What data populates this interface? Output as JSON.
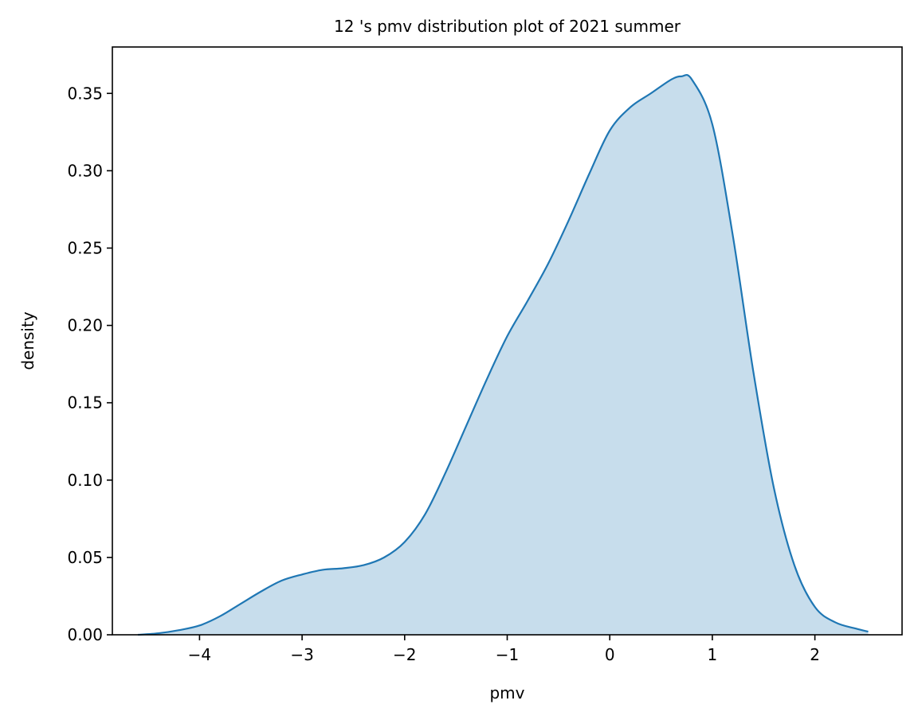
{
  "chart_data": {
    "type": "area",
    "title": "12 's pmv distribution plot of 2021 summer",
    "xlabel": "pmv",
    "ylabel": "density",
    "xlim": [
      -4.85,
      2.85
    ],
    "ylim": [
      0.0,
      0.38
    ],
    "grid": false,
    "legend": "none",
    "x_ticks": [
      -4,
      -3,
      -2,
      -1,
      0,
      1,
      2
    ],
    "x_tick_labels": [
      "−4",
      "−3",
      "−2",
      "−1",
      "0",
      "1",
      "2"
    ],
    "y_ticks": [
      0.0,
      0.05,
      0.1,
      0.15,
      0.2,
      0.25,
      0.3,
      0.35
    ],
    "y_tick_labels": [
      "0.00",
      "0.05",
      "0.10",
      "0.15",
      "0.20",
      "0.25",
      "0.30",
      "0.35"
    ],
    "colors": {
      "line": "#1f77b4",
      "fill": "#1f77b4",
      "fill_opacity": 0.25,
      "axes": "#000000"
    },
    "series": [
      {
        "x": [
          -4.6,
          -4.4,
          -4.2,
          -4.0,
          -3.8,
          -3.6,
          -3.4,
          -3.2,
          -3.0,
          -2.8,
          -2.6,
          -2.4,
          -2.2,
          -2.0,
          -1.8,
          -1.6,
          -1.4,
          -1.2,
          -1.0,
          -0.8,
          -0.6,
          -0.4,
          -0.2,
          0.0,
          0.2,
          0.4,
          0.6,
          0.7,
          0.8,
          1.0,
          1.2,
          1.4,
          1.6,
          1.8,
          2.0,
          2.2,
          2.4,
          2.52
        ],
        "y": [
          0.0,
          0.001,
          0.003,
          0.006,
          0.012,
          0.02,
          0.028,
          0.035,
          0.039,
          0.042,
          0.043,
          0.045,
          0.05,
          0.06,
          0.078,
          0.105,
          0.135,
          0.165,
          0.193,
          0.216,
          0.24,
          0.268,
          0.298,
          0.326,
          0.341,
          0.35,
          0.359,
          0.361,
          0.359,
          0.33,
          0.258,
          0.17,
          0.095,
          0.045,
          0.018,
          0.008,
          0.004,
          0.002
        ]
      }
    ]
  }
}
